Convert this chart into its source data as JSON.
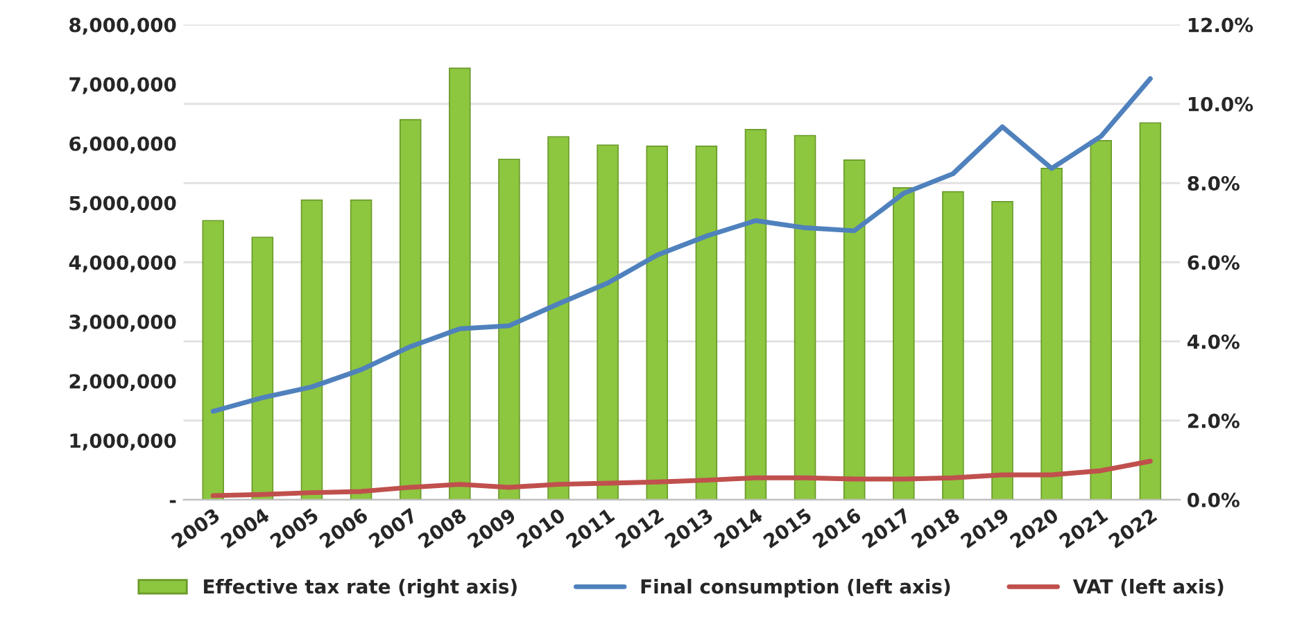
{
  "chart_data": {
    "type": "bar",
    "categories": [
      "2003",
      "2004",
      "2005",
      "2006",
      "2007",
      "2008",
      "2009",
      "2010",
      "2011",
      "2012",
      "2013",
      "2014",
      "2015",
      "2016",
      "2017",
      "2018",
      "2019",
      "2020",
      "2021",
      "2022"
    ],
    "series": [
      {
        "name": "Effective tax rate (right axis)",
        "axis": "y2",
        "color": "#8dc63f",
        "values": [
          7.05,
          6.63,
          7.57,
          7.57,
          9.6,
          10.9,
          8.6,
          9.17,
          8.96,
          8.93,
          8.93,
          9.35,
          9.2,
          8.58,
          7.88,
          7.78,
          7.53,
          8.37,
          9.07,
          9.52
        ]
      },
      {
        "name": "Final consumption (left axis)",
        "type": "line",
        "color": "#4f81bd",
        "values": [
          1490000,
          1720000,
          1900000,
          2190000,
          2580000,
          2880000,
          2930000,
          3300000,
          3650000,
          4120000,
          4440000,
          4700000,
          4580000,
          4530000,
          5160000,
          5490000,
          6280000,
          5580000,
          6120000,
          7090000
        ]
      },
      {
        "name": "VAT (left axis)",
        "type": "line",
        "color": "#c0504d",
        "values": [
          70000,
          90000,
          120000,
          140000,
          210000,
          260000,
          210000,
          260000,
          280000,
          300000,
          330000,
          370000,
          370000,
          350000,
          350000,
          370000,
          420000,
          420000,
          490000,
          650000
        ]
      }
    ],
    "ylim": [
      0,
      8000000
    ],
    "yticks": [
      {
        "value": 0,
        "label": "-"
      },
      {
        "value": 1000000,
        "label": "1,000,000"
      },
      {
        "value": 2000000,
        "label": "2,000,000"
      },
      {
        "value": 3000000,
        "label": "3,000,000"
      },
      {
        "value": 4000000,
        "label": "4,000,000"
      },
      {
        "value": 5000000,
        "label": "5,000,000"
      },
      {
        "value": 6000000,
        "label": "6,000,000"
      },
      {
        "value": 7000000,
        "label": "7,000,000"
      },
      {
        "value": 8000000,
        "label": "8,000,000"
      }
    ],
    "y2lim": [
      0,
      12
    ],
    "y2ticks": [
      {
        "value": 0,
        "label": "0.0%"
      },
      {
        "value": 2,
        "label": "2.0%"
      },
      {
        "value": 4,
        "label": "4.0%"
      },
      {
        "value": 6,
        "label": "6.0%"
      },
      {
        "value": 8,
        "label": "8.0%"
      },
      {
        "value": 10,
        "label": "10.0%"
      },
      {
        "value": 12,
        "label": "12.0%"
      }
    ],
    "grid": "y",
    "legend": "bottom",
    "marker": "none",
    "line_style": "solid"
  }
}
